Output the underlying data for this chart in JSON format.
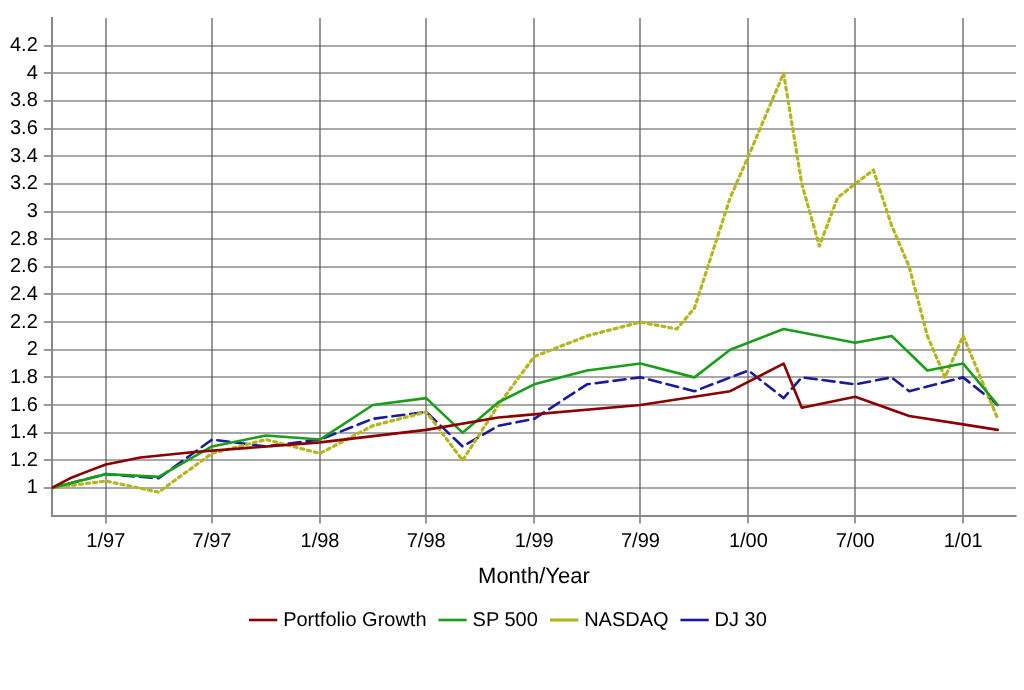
{
  "chart_data": {
    "type": "line",
    "xlabel": "Month/Year",
    "xlim": [
      "1996-10",
      "2001-04"
    ],
    "xticks": [
      {
        "value": "1997-01",
        "label": "1/97"
      },
      {
        "value": "1997-07",
        "label": "7/97"
      },
      {
        "value": "1998-01",
        "label": "1/98"
      },
      {
        "value": "1998-07",
        "label": "7/98"
      },
      {
        "value": "1999-01",
        "label": "1/99"
      },
      {
        "value": "1999-07",
        "label": "7/99"
      },
      {
        "value": "2000-01",
        "label": "1/00"
      },
      {
        "value": "2000-07",
        "label": "7/00"
      },
      {
        "value": "2001-01",
        "label": "1/01"
      }
    ],
    "ylim": [
      0.8,
      4.4
    ],
    "yticks": [
      1,
      1.2,
      1.4,
      1.6,
      1.8,
      2,
      2.2,
      2.4,
      2.6,
      2.8,
      3,
      3.2,
      3.4,
      3.6,
      3.8,
      4,
      4.2
    ],
    "grid": true,
    "legend": "bottom",
    "marker": "none",
    "series": [
      {
        "name": "Portfolio Growth",
        "color": "#8b0000",
        "line_style": "solid",
        "x": [
          "1996-10",
          "1996-11",
          "1996-12",
          "1997-01",
          "1997-03",
          "1997-06",
          "1997-09",
          "1998-01",
          "1998-07",
          "1998-11",
          "1999-07",
          "1999-12",
          "2000-03",
          "2000-04",
          "2000-07",
          "2000-10",
          "2001-01",
          "2001-03"
        ],
        "values": [
          1.0,
          1.07,
          1.12,
          1.17,
          1.22,
          1.26,
          1.29,
          1.33,
          1.42,
          1.51,
          1.6,
          1.7,
          1.9,
          1.58,
          1.66,
          1.52,
          1.46,
          1.42
        ]
      },
      {
        "name": "SP 500",
        "color": "#1a9e1a",
        "line_style": "solid",
        "x": [
          "1996-10",
          "1997-01",
          "1997-04",
          "1997-07",
          "1997-10",
          "1998-01",
          "1998-04",
          "1998-07",
          "1998-09",
          "1998-11",
          "1999-01",
          "1999-04",
          "1999-07",
          "1999-10",
          "1999-12",
          "2000-03",
          "2000-07",
          "2000-09",
          "2000-11",
          "2001-01",
          "2001-03"
        ],
        "values": [
          1.0,
          1.1,
          1.08,
          1.3,
          1.38,
          1.35,
          1.6,
          1.65,
          1.4,
          1.62,
          1.75,
          1.85,
          1.9,
          1.8,
          2.0,
          2.15,
          2.05,
          2.1,
          1.85,
          1.9,
          1.6
        ]
      },
      {
        "name": "NASDAQ",
        "color": "#b5b520",
        "line_style": "dotted",
        "x": [
          "1996-10",
          "1997-01",
          "1997-04",
          "1997-07",
          "1997-10",
          "1998-01",
          "1998-04",
          "1998-07",
          "1998-09",
          "1998-11",
          "1999-01",
          "1999-04",
          "1999-07",
          "1999-09",
          "1999-10",
          "1999-12",
          "2000-01",
          "2000-03",
          "2000-04",
          "2000-05",
          "2000-06",
          "2000-07",
          "2000-08",
          "2000-09",
          "2000-10",
          "2000-11",
          "2000-12",
          "2001-01",
          "2001-03"
        ],
        "values": [
          1.0,
          1.05,
          0.97,
          1.25,
          1.35,
          1.25,
          1.45,
          1.55,
          1.2,
          1.6,
          1.95,
          2.1,
          2.2,
          2.15,
          2.3,
          3.1,
          3.4,
          4.0,
          3.2,
          2.75,
          3.1,
          3.2,
          3.3,
          2.9,
          2.6,
          2.1,
          1.8,
          2.1,
          1.5
        ]
      },
      {
        "name": "DJ 30",
        "color": "#1a1a9e",
        "line_style": "dashed",
        "x": [
          "1996-10",
          "1997-01",
          "1997-04",
          "1997-07",
          "1997-10",
          "1998-01",
          "1998-04",
          "1998-07",
          "1998-09",
          "1998-11",
          "1999-01",
          "1999-04",
          "1999-07",
          "1999-10",
          "2000-01",
          "2000-03",
          "2000-04",
          "2000-07",
          "2000-09",
          "2000-10",
          "2001-01",
          "2001-03"
        ],
        "values": [
          1.0,
          1.1,
          1.07,
          1.35,
          1.3,
          1.35,
          1.5,
          1.55,
          1.3,
          1.45,
          1.5,
          1.75,
          1.8,
          1.7,
          1.85,
          1.65,
          1.8,
          1.75,
          1.8,
          1.7,
          1.8,
          1.6
        ]
      }
    ]
  }
}
